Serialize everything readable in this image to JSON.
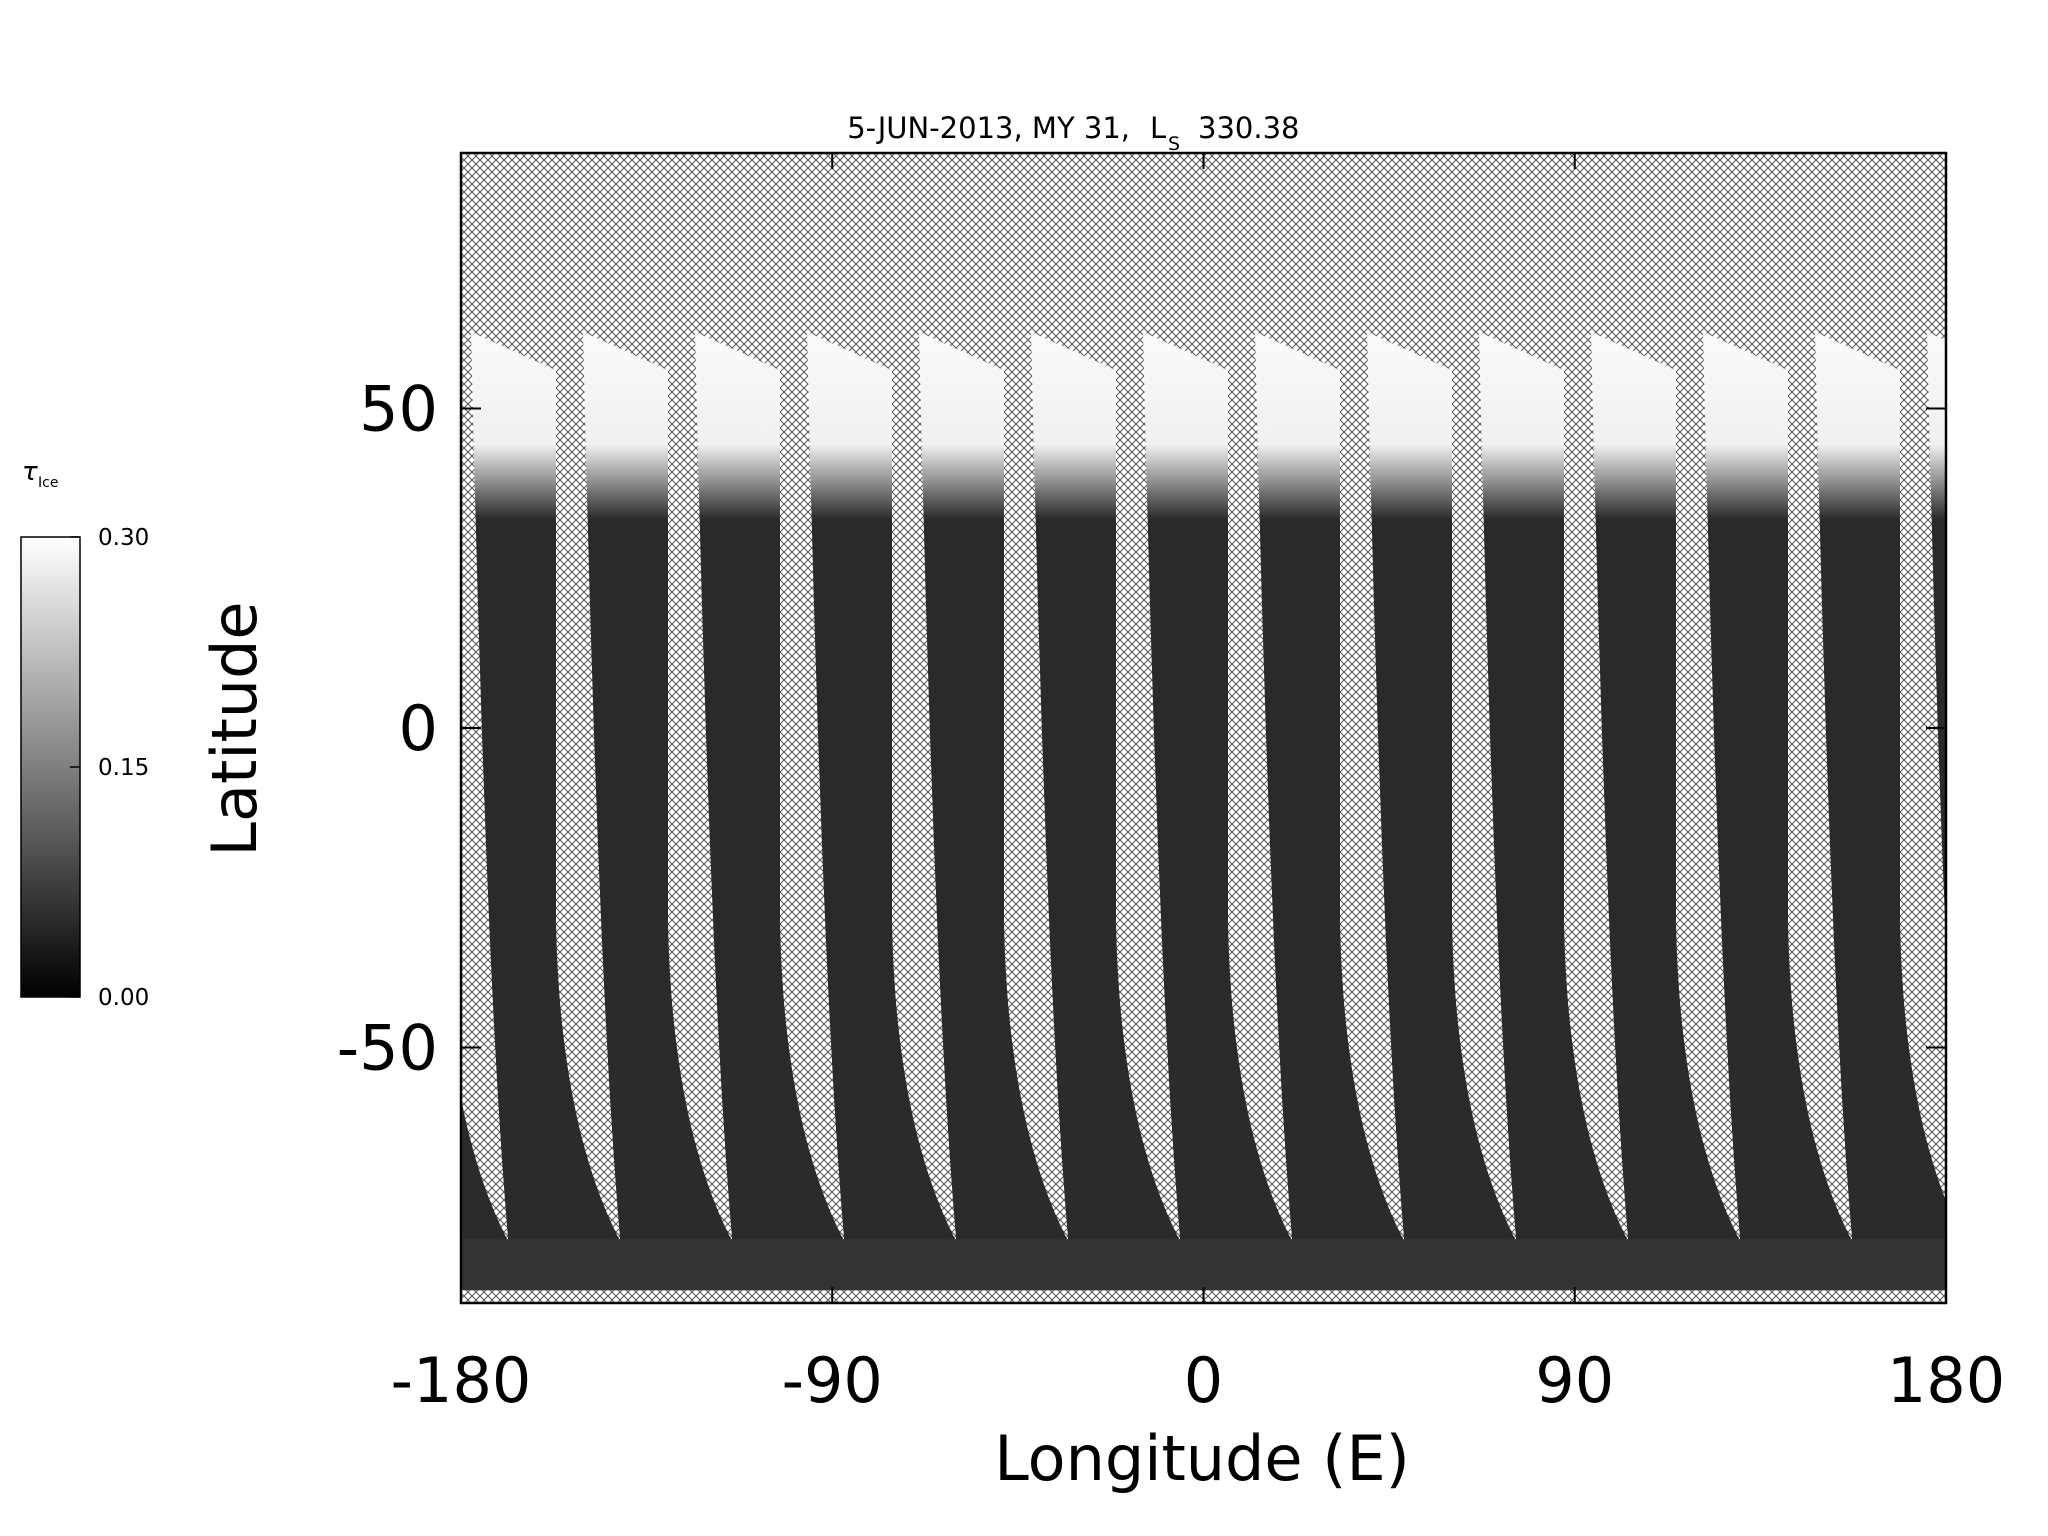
{
  "chart_data": {
    "type": "map",
    "title": "5-JUN-2013, MY 31,",
    "title_ls_symbol": "L",
    "title_ls_subscript": "S",
    "title_ls_value": "330.38",
    "x_label": "Longitude (E)",
    "y_label": "Latitude",
    "xlim": [
      -180,
      180
    ],
    "xticks": [
      -180,
      -90,
      0,
      90,
      180
    ],
    "ylim": [
      -90,
      90
    ],
    "yticks": [
      -50,
      0,
      50
    ],
    "colorbar": {
      "label": "τ",
      "label_subscript": "Ice",
      "lim": [
        0,
        0.3
      ],
      "ticks": [
        {
          "value": 0,
          "label": "0.00"
        },
        {
          "value": 0.15,
          "label": "0.15"
        },
        {
          "value": 0.3,
          "label": "0.30"
        }
      ]
    }
  }
}
